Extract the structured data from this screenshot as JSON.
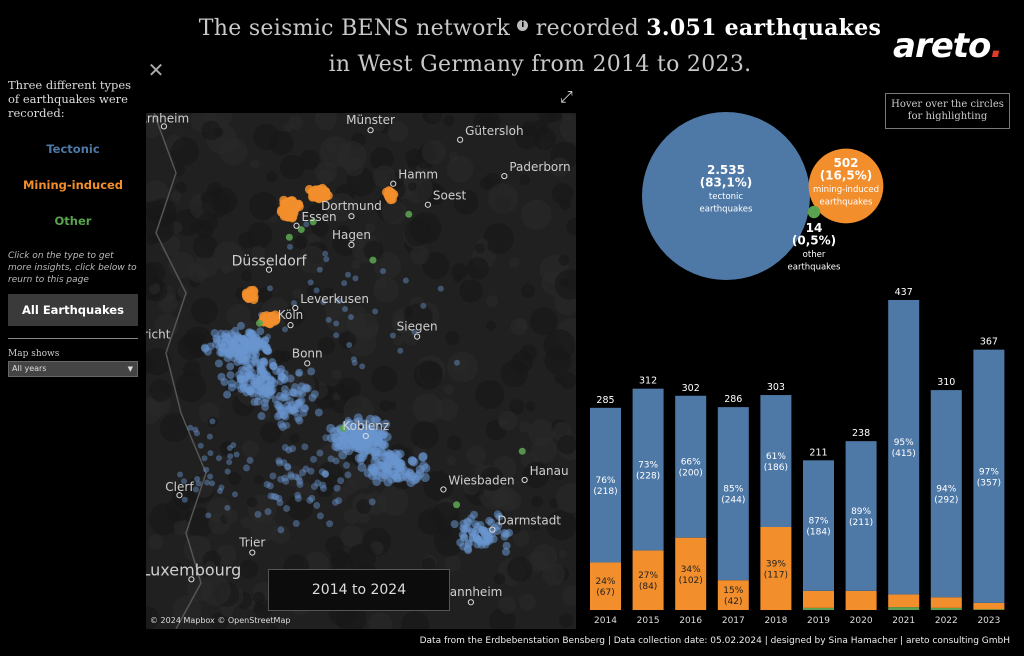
{
  "title": {
    "pre": "The seismic BENS network",
    "info_icon": "i",
    "mid": " recorded ",
    "count": "3.051",
    "post": " earthquakes",
    "line2": "in West Germany from 2014 to 2023."
  },
  "logo": {
    "text": "areto",
    "dot": "."
  },
  "close_icon": "✕",
  "sidebar": {
    "intro": "Three different types of earthquakes were recorded:",
    "types": [
      {
        "label": "Tectonic",
        "color": "#4e79a7"
      },
      {
        "label": "Mining-induced",
        "color": "#f28e2b"
      },
      {
        "label": "Other",
        "color": "#59a14f"
      }
    ],
    "hint": "Click on the type to get more insights, click below to reurn to this page",
    "all_button": "All Earthquakes",
    "map_shows_label": "Map shows",
    "map_shows_value": "All years"
  },
  "map": {
    "cities": [
      {
        "name": "Arnheim",
        "lon": 5.9,
        "lat": 51.98
      },
      {
        "name": "Münster",
        "lon": 7.63,
        "lat": 51.96
      },
      {
        "name": "Gütersloh",
        "lon": 8.38,
        "lat": 51.91
      },
      {
        "name": "Paderborn",
        "lon": 8.75,
        "lat": 51.72
      },
      {
        "name": "Hamm",
        "lon": 7.82,
        "lat": 51.68
      },
      {
        "name": "Soest",
        "lon": 8.11,
        "lat": 51.57
      },
      {
        "name": "Dortmund",
        "lon": 7.47,
        "lat": 51.51
      },
      {
        "name": "Essen",
        "lon": 7.01,
        "lat": 51.46
      },
      {
        "name": "Hagen",
        "lon": 7.47,
        "lat": 51.36
      },
      {
        "name": "Düsseldorf",
        "lon": 6.78,
        "lat": 51.23
      },
      {
        "name": "Leverkusen",
        "lon": 7.0,
        "lat": 51.03
      },
      {
        "name": "Köln",
        "lon": 6.96,
        "lat": 50.94
      },
      {
        "name": "Siegen",
        "lon": 8.02,
        "lat": 50.88
      },
      {
        "name": "Maastricht",
        "lon": 5.69,
        "lat": 50.85
      },
      {
        "name": "Bonn",
        "lon": 7.1,
        "lat": 50.74
      },
      {
        "name": "Koblenz",
        "lon": 7.59,
        "lat": 50.36
      },
      {
        "name": "Hanau",
        "lon": 8.92,
        "lat": 50.13
      },
      {
        "name": "Wiesbaden",
        "lon": 8.24,
        "lat": 50.08
      },
      {
        "name": "Clerf",
        "lon": 6.03,
        "lat": 50.05
      },
      {
        "name": "Darmstadt",
        "lon": 8.65,
        "lat": 49.87
      },
      {
        "name": "Trier",
        "lon": 6.64,
        "lat": 49.75
      },
      {
        "name": "Luxembourg",
        "lon": 6.13,
        "lat": 49.61
      },
      {
        "name": "Mannheim",
        "lon": 8.47,
        "lat": 49.49
      }
    ],
    "time_range": "2014 to 2024",
    "credits": "© 2024 Mapbox © OpenStreetMap",
    "expand_icon": "⤢"
  },
  "hover_hint": "Hover over the circles for highlighting",
  "chart_data": [
    {
      "type": "bubble",
      "items": [
        {
          "count": "2.535",
          "pct": "(83,1%)",
          "label1": "tectonic",
          "label2": "earthquakes",
          "value": 2535,
          "color": "#4e79a7"
        },
        {
          "count": "502",
          "pct": "(16,5%)",
          "label1": "mining-induced",
          "label2": "earthquakes",
          "value": 502,
          "color": "#f28e2b"
        },
        {
          "count": "14",
          "pct": "(0,5%)",
          "label1": "other",
          "label2": "earthquakes",
          "value": 14,
          "color": "#59a14f"
        }
      ]
    },
    {
      "type": "bar",
      "stacked": true,
      "categories": [
        "2014",
        "2015",
        "2016",
        "2017",
        "2018",
        "2019",
        "2020",
        "2021",
        "2022",
        "2023"
      ],
      "totals": [
        285,
        312,
        302,
        286,
        303,
        211,
        238,
        437,
        310,
        367
      ],
      "series": [
        {
          "key": "tectonic",
          "color": "#4e79a7",
          "values": [
            218,
            228,
            200,
            244,
            186,
            184,
            211,
            415,
            292,
            357
          ],
          "labels": [
            [
              "76%",
              "(218)"
            ],
            [
              "73%",
              "(228)"
            ],
            [
              "66%",
              "(200)"
            ],
            [
              "85%",
              "(244)"
            ],
            [
              "61%",
              "(186)"
            ],
            [
              "87%",
              "(184)"
            ],
            [
              "89%",
              "(211)"
            ],
            [
              "95%",
              "(415)"
            ],
            [
              "94%",
              "(292)"
            ],
            [
              "97%",
              "(357)"
            ]
          ]
        },
        {
          "key": "mining",
          "color": "#f28e2b",
          "values": [
            67,
            84,
            102,
            42,
            117,
            24,
            27,
            18,
            15,
            9
          ],
          "labels": [
            [
              "24%",
              "(67)"
            ],
            [
              "27%",
              "(84)"
            ],
            [
              "34%",
              "(102)"
            ],
            [
              "15%",
              "(42)"
            ],
            [
              "39%",
              "(117)"
            ],
            null,
            null,
            null,
            null,
            null
          ]
        },
        {
          "key": "other",
          "color": "#59a14f",
          "values": [
            0,
            0,
            0,
            0,
            0,
            3,
            0,
            4,
            3,
            1
          ],
          "labels": [
            null,
            null,
            null,
            null,
            null,
            null,
            null,
            null,
            null,
            null
          ]
        }
      ]
    }
  ],
  "footer": "Data from the Erdbebenstation Bensberg | Data collection date: 05.02.2024 | designed by Sina Hamacher | areto consulting GmbH"
}
